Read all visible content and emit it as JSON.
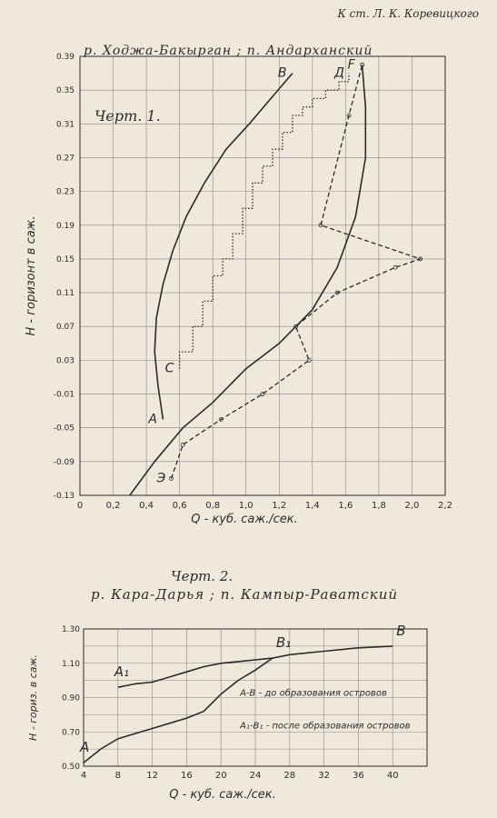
{
  "header": {
    "text": "К ст. Л. К. Коревицкого"
  },
  "chart1": {
    "title": "р. Ходжа-Бакырган ; п. Андарханский",
    "label": "Черт. 1.",
    "ylabel": "H - горизонт в саж.",
    "xlabel": "Q - куб. саж./сек."
  },
  "chart2": {
    "heading": "Черт. 2.",
    "title": "р. Кара-Дарья ; п. Кампыр-Раватский",
    "ylabel": "H - гориз. в саж.",
    "xlabel": "Q - куб. саж./сек.",
    "legend_ab": "А-В - до образования островов",
    "legend_a1b1": "А₁-В₁ - после образования островов"
  },
  "chart_data": [
    {
      "type": "line",
      "title": "р. Ходжа-Бакырган ; п. Андарханский",
      "xlabel": "Q - куб. саж./сек.",
      "ylabel": "H - горизонт в саж.",
      "xlim": [
        0,
        2.2
      ],
      "ylim": [
        -0.13,
        0.39
      ],
      "x_ticks": [
        "0",
        "0,2",
        "0,4",
        "0,6",
        "0,8",
        "1,0",
        "1,2",
        "1,4",
        "1,6",
        "1,8",
        "2,0",
        "2,2"
      ],
      "y_ticks": [
        "-0.13",
        "-0.09",
        "-0.05",
        "-0.01",
        "0.03",
        "0.07",
        "0.11",
        "0.15",
        "0.19",
        "0.23",
        "0.27",
        "0.31",
        "0.35",
        "0.39"
      ],
      "grid": true,
      "series": [
        {
          "name": "А-В",
          "style": "solid",
          "label_start": "А",
          "label_end": "В",
          "x": [
            0.5,
            0.47,
            0.45,
            0.46,
            0.5,
            0.56,
            0.64,
            0.75,
            0.88,
            1.02,
            1.15,
            1.28
          ],
          "y": [
            -0.04,
            0.0,
            0.04,
            0.08,
            0.12,
            0.16,
            0.2,
            0.24,
            0.28,
            0.31,
            0.34,
            0.37
          ]
        },
        {
          "name": "С-Д",
          "style": "dotted",
          "label_start": "С",
          "label_end": "Д",
          "x": [
            0.6,
            0.6,
            0.68,
            0.68,
            0.74,
            0.74,
            0.8,
            0.8,
            0.86,
            0.86,
            0.92,
            0.92,
            0.98,
            0.98,
            1.04,
            1.04,
            1.1,
            1.1,
            1.16,
            1.16,
            1.22,
            1.22,
            1.28,
            1.28,
            1.34,
            1.34,
            1.4,
            1.4,
            1.48,
            1.48,
            1.56,
            1.56,
            1.62,
            1.62
          ],
          "y": [
            0.02,
            0.04,
            0.04,
            0.07,
            0.07,
            0.1,
            0.1,
            0.13,
            0.13,
            0.15,
            0.15,
            0.18,
            0.18,
            0.21,
            0.21,
            0.24,
            0.24,
            0.26,
            0.26,
            0.28,
            0.28,
            0.3,
            0.3,
            0.32,
            0.32,
            0.33,
            0.33,
            0.34,
            0.34,
            0.35,
            0.35,
            0.36,
            0.36,
            0.37
          ]
        },
        {
          "name": "Э-F",
          "style": "dashed",
          "label_start": "Э",
          "label_end": "F",
          "x": [
            0.55,
            0.62,
            0.85,
            1.1,
            1.38,
            1.3,
            1.55,
            1.9,
            2.05,
            1.45,
            1.62,
            1.7
          ],
          "y": [
            -0.11,
            -0.07,
            -0.04,
            -0.01,
            0.03,
            0.07,
            0.11,
            0.14,
            0.15,
            0.19,
            0.32,
            0.38
          ]
        },
        {
          "name": "",
          "style": "solid",
          "x": [
            0.3,
            0.45,
            0.62,
            0.8,
            1.0,
            1.2,
            1.4,
            1.55,
            1.66,
            1.72,
            1.72,
            1.7
          ],
          "y": [
            -0.13,
            -0.09,
            -0.05,
            -0.02,
            0.02,
            0.05,
            0.09,
            0.14,
            0.2,
            0.27,
            0.33,
            0.38
          ]
        }
      ]
    },
    {
      "type": "line",
      "title": "р. Кара-Дарья ; п. Кампыр-Раватский",
      "xlabel": "Q - куб. саж./сек.",
      "ylabel": "H - гориз. в саж.",
      "xlim": [
        4,
        44
      ],
      "ylim": [
        0.5,
        1.3
      ],
      "x_ticks": [
        "4",
        "8",
        "12",
        "16",
        "20",
        "24",
        "28",
        "32",
        "36",
        "40"
      ],
      "y_ticks": [
        "0.50",
        "0.70",
        "0.90",
        "1.10",
        "1.30"
      ],
      "grid": true,
      "series": [
        {
          "name": "А-В",
          "label_start": "А",
          "label_end": "В",
          "x": [
            4,
            6,
            8,
            10,
            12,
            14,
            16,
            18,
            20,
            22,
            24,
            26,
            28,
            32,
            36,
            40
          ],
          "y": [
            0.52,
            0.6,
            0.66,
            0.69,
            0.72,
            0.75,
            0.78,
            0.82,
            0.92,
            1.0,
            1.06,
            1.13,
            1.15,
            1.17,
            1.19,
            1.2
          ]
        },
        {
          "name": "А₁-В₁",
          "label_start": "А₁",
          "label_end": "В₁",
          "x": [
            8,
            10,
            12,
            14,
            16,
            18,
            20,
            22,
            24,
            26
          ],
          "y": [
            0.96,
            0.98,
            0.99,
            1.02,
            1.05,
            1.08,
            1.1,
            1.11,
            1.12,
            1.13
          ]
        }
      ]
    }
  ]
}
